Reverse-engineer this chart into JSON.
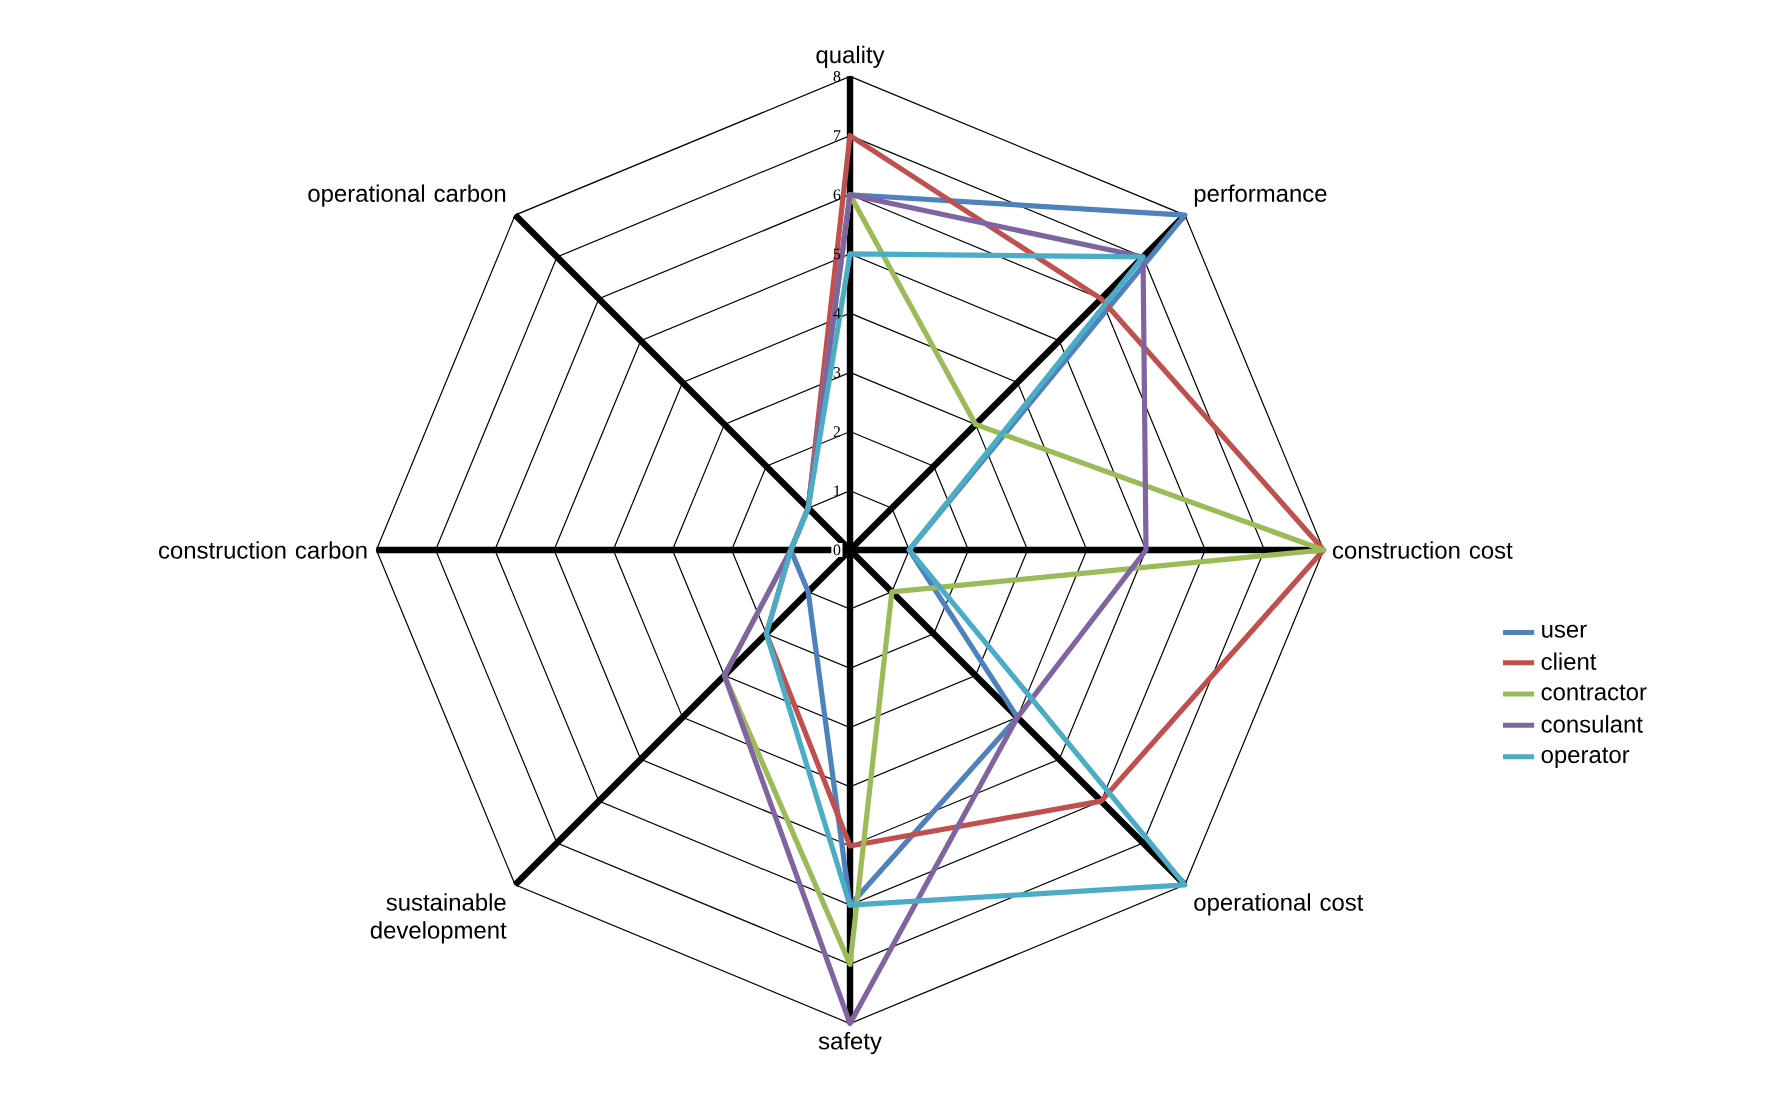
{
  "chart_data": {
    "type": "radar",
    "categories": [
      "quality",
      "performance",
      "construction cost",
      "operational cost",
      "safety",
      "sustainable development",
      "construction carbon",
      "operational carbon"
    ],
    "series": [
      {
        "name": "user",
        "color": "#4f81bd",
        "values": [
          6,
          8,
          1,
          4,
          6,
          1,
          1,
          1
        ]
      },
      {
        "name": "client",
        "color": "#c0504d",
        "values": [
          7,
          6,
          8,
          6,
          5,
          2,
          1,
          1
        ]
      },
      {
        "name": "contractor",
        "color": "#9bbb59",
        "values": [
          6,
          3,
          8,
          1,
          7,
          3,
          1,
          1
        ]
      },
      {
        "name": "consulant",
        "color": "#8064a2",
        "values": [
          6,
          7,
          5,
          4,
          8,
          3,
          1,
          1
        ]
      },
      {
        "name": "operator",
        "color": "#4bacc6",
        "values": [
          5,
          7,
          1,
          8,
          6,
          2,
          1,
          1
        ]
      }
    ],
    "ylim": [
      0,
      8
    ],
    "yticks": [
      0,
      1,
      2,
      3,
      4,
      5,
      6,
      7,
      8
    ],
    "grid": true,
    "legend": "right"
  }
}
